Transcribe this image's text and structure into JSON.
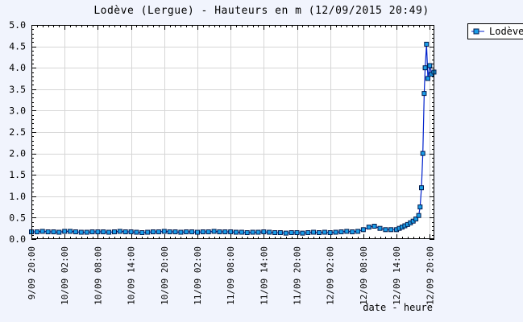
{
  "chart_data": {
    "type": "line",
    "title": "Lodève (Lergue) - Hauteurs en m (12/09/2015 20:49)",
    "xlabel": "date - heure",
    "ylabel": "",
    "ylim": [
      0.0,
      5.0
    ],
    "ytick_step": 0.5,
    "y_minor_step": 0.1,
    "xlim_hours": [
      0,
      72.83
    ],
    "x_minor_step_hours": 1,
    "grid": true,
    "legend": {
      "position": "top-right",
      "label": "Lodève"
    },
    "x_major_ticks": [
      {
        "t": 0,
        "label": "9/09 20:00"
      },
      {
        "t": 6,
        "label": "10/09 02:00"
      },
      {
        "t": 12,
        "label": "10/09 08:00"
      },
      {
        "t": 18,
        "label": "10/09 14:00"
      },
      {
        "t": 24,
        "label": "10/09 20:00"
      },
      {
        "t": 30,
        "label": "11/09 02:00"
      },
      {
        "t": 36,
        "label": "11/09 08:00"
      },
      {
        "t": 42,
        "label": "11/09 14:00"
      },
      {
        "t": 48,
        "label": "11/09 20:00"
      },
      {
        "t": 54,
        "label": "12/09 02:00"
      },
      {
        "t": 60,
        "label": "12/09 08:00"
      },
      {
        "t": 66,
        "label": "12/09 14:00"
      },
      {
        "t": 72,
        "label": "12/09 20:00"
      }
    ],
    "series": [
      {
        "name": "Lodève",
        "points_t_hours_vs_m": [
          [
            0,
            0.17
          ],
          [
            1,
            0.17
          ],
          [
            2,
            0.18
          ],
          [
            3,
            0.17
          ],
          [
            4,
            0.17
          ],
          [
            5,
            0.16
          ],
          [
            6,
            0.18
          ],
          [
            7,
            0.18
          ],
          [
            8,
            0.17
          ],
          [
            9,
            0.16
          ],
          [
            10,
            0.16
          ],
          [
            11,
            0.17
          ],
          [
            12,
            0.17
          ],
          [
            13,
            0.17
          ],
          [
            14,
            0.16
          ],
          [
            15,
            0.17
          ],
          [
            16,
            0.18
          ],
          [
            17,
            0.17
          ],
          [
            18,
            0.17
          ],
          [
            19,
            0.16
          ],
          [
            20,
            0.15
          ],
          [
            21,
            0.16
          ],
          [
            22,
            0.17
          ],
          [
            23,
            0.17
          ],
          [
            24,
            0.18
          ],
          [
            25,
            0.17
          ],
          [
            26,
            0.17
          ],
          [
            27,
            0.16
          ],
          [
            28,
            0.17
          ],
          [
            29,
            0.17
          ],
          [
            30,
            0.16
          ],
          [
            31,
            0.17
          ],
          [
            32,
            0.17
          ],
          [
            33,
            0.18
          ],
          [
            34,
            0.17
          ],
          [
            35,
            0.17
          ],
          [
            36,
            0.17
          ],
          [
            37,
            0.16
          ],
          [
            38,
            0.16
          ],
          [
            39,
            0.15
          ],
          [
            40,
            0.16
          ],
          [
            41,
            0.16
          ],
          [
            42,
            0.17
          ],
          [
            43,
            0.16
          ],
          [
            44,
            0.15
          ],
          [
            45,
            0.15
          ],
          [
            46,
            0.14
          ],
          [
            47,
            0.15
          ],
          [
            48,
            0.15
          ],
          [
            49,
            0.14
          ],
          [
            50,
            0.15
          ],
          [
            51,
            0.16
          ],
          [
            52,
            0.15
          ],
          [
            53,
            0.16
          ],
          [
            54,
            0.15
          ],
          [
            55,
            0.16
          ],
          [
            56,
            0.17
          ],
          [
            57,
            0.18
          ],
          [
            58,
            0.17
          ],
          [
            59,
            0.18
          ],
          [
            60,
            0.22
          ],
          [
            61,
            0.28
          ],
          [
            62,
            0.3
          ],
          [
            63,
            0.25
          ],
          [
            64,
            0.22
          ],
          [
            65,
            0.22
          ],
          [
            66,
            0.22
          ],
          [
            66.5,
            0.25
          ],
          [
            67,
            0.28
          ],
          [
            67.5,
            0.31
          ],
          [
            68,
            0.34
          ],
          [
            68.5,
            0.38
          ],
          [
            69,
            0.42
          ],
          [
            69.5,
            0.47
          ],
          [
            70,
            0.55
          ],
          [
            70.25,
            0.75
          ],
          [
            70.5,
            1.2
          ],
          [
            70.75,
            2.0
          ],
          [
            71,
            3.4
          ],
          [
            71.17,
            4.0
          ],
          [
            71.42,
            4.55
          ],
          [
            71.67,
            3.75
          ],
          [
            72,
            4.05
          ],
          [
            72.33,
            3.85
          ],
          [
            72.75,
            3.9
          ]
        ]
      }
    ],
    "colors": {
      "page_background": "#f1f4fd",
      "plot_background": "#ffffff",
      "grid": "#d6d6d6",
      "axis": "#000000",
      "line": "#0022cc",
      "marker_fill": "#1b9de8",
      "marker_stroke": "#001a4d",
      "text": "#000000"
    }
  }
}
